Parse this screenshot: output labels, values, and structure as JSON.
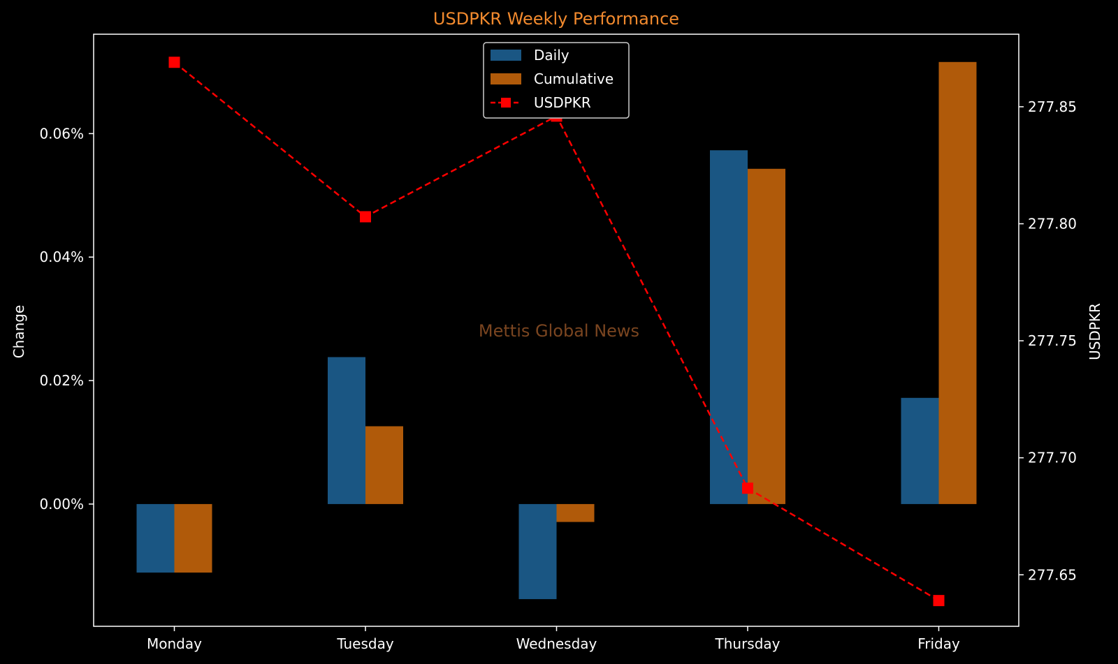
{
  "chart_data": {
    "type": "bar",
    "title": "USDPKR Weekly Performance",
    "watermark": "Mettis Global News",
    "categories": [
      "Monday",
      "Tuesday",
      "Wednesday",
      "Thursday",
      "Friday"
    ],
    "series": [
      {
        "name": "Daily",
        "type": "bar",
        "axis": "left",
        "color": "#1a5683",
        "values": [
          -0.0111,
          0.0238,
          -0.0154,
          0.0573,
          0.0172
        ]
      },
      {
        "name": "Cumulative",
        "type": "bar",
        "axis": "left",
        "color": "#b05a0a",
        "values": [
          -0.0111,
          0.0126,
          -0.0029,
          0.0543,
          0.0716
        ]
      },
      {
        "name": "USDPKR",
        "type": "line",
        "axis": "right",
        "color": "#ff0000",
        "line_style": "dashed",
        "marker": "square",
        "values": [
          277.869,
          277.803,
          277.846,
          277.687,
          277.639
        ]
      }
    ],
    "ylabel": "Change",
    "ylabel_right": "USDPKR",
    "ylim": [
      -0.0198,
      0.0761
    ],
    "ylim_right": [
      277.628,
      277.881
    ],
    "yticks": [
      "0.00%",
      "0.02%",
      "0.04%",
      "0.06%"
    ],
    "yticks_right": [
      "277.65",
      "277.70",
      "277.75",
      "277.80",
      "277.85"
    ],
    "legend_position": "top-center",
    "grid": false,
    "colors": {
      "background": "#000000",
      "title": "#f28a2e",
      "watermark": "#7a4520",
      "text": "#ffffff"
    }
  }
}
